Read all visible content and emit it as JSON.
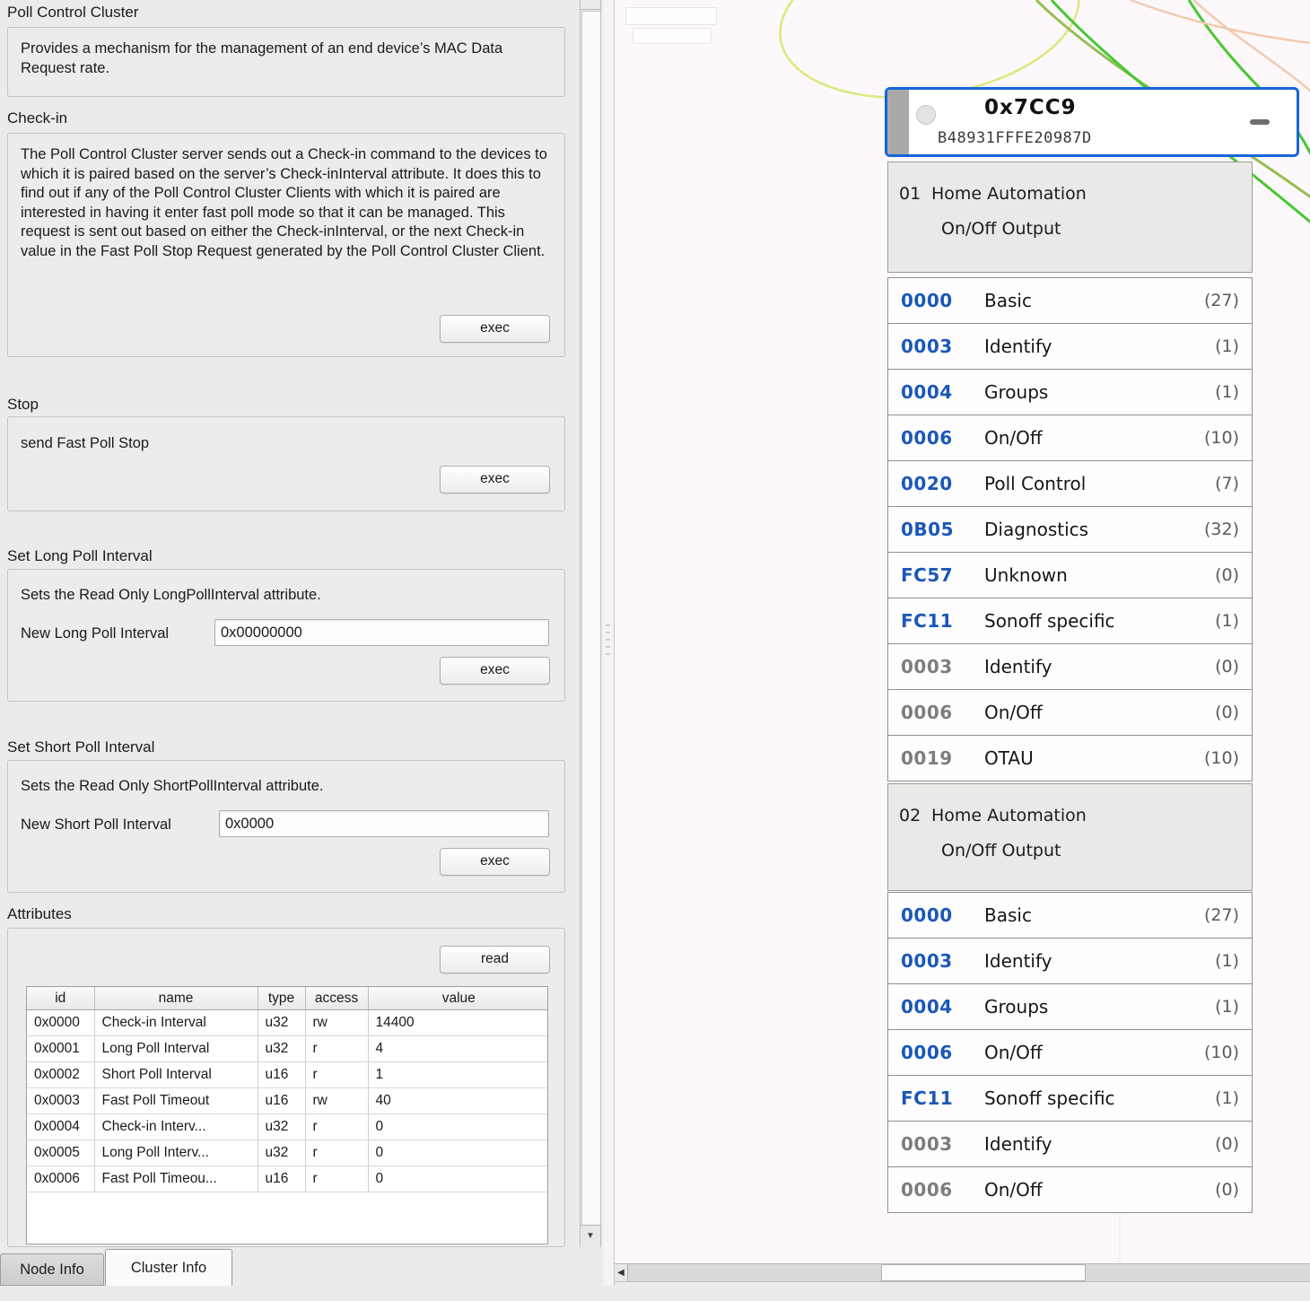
{
  "colors": {
    "accent_blue": "#1565d8",
    "code_blue": "#1b57b8",
    "code_gray": "#7d7d7d",
    "left_bg": "#ebebeb",
    "right_bg": "#fdf8fb",
    "link_green": "#47c832",
    "link_olive": "#97bd52",
    "link_yellow": "#dce87c",
    "link_salmon": "#f1cbb0"
  },
  "icons": {
    "scroll_down": "▼",
    "scroll_left": "◀"
  },
  "left_panel": {
    "title": "Poll Control Cluster",
    "description": "Provides a mechanism for the management of an end device’s MAC Data Request rate.",
    "sections": {
      "checkin": {
        "label": "Check-in",
        "text": "The Poll Control Cluster server sends out a Check-in command to the devices to which it is paired based on the server’s Check-inInterval attribute. It does this to find out if any of the Poll Control Cluster Clients with which it is paired are interested in having it enter fast poll mode so that it can be managed. This request is sent out based on either the Check-inInterval, or the next Check-in value in the Fast Poll Stop Request generated by the Poll Control Cluster Client.",
        "exec_label": "exec"
      },
      "stop": {
        "label": "Stop",
        "text": "send Fast Poll Stop",
        "exec_label": "exec"
      },
      "long_poll": {
        "label": "Set Long Poll Interval",
        "text": "Sets the Read Only LongPollInterval attribute.",
        "field_label": "New Long Poll Interval",
        "field_value": "0x00000000",
        "exec_label": "exec"
      },
      "short_poll": {
        "label": "Set Short Poll Interval",
        "text": "Sets the Read Only ShortPollInterval attribute.",
        "field_label": "New Short Poll Interval",
        "field_value": "0x0000",
        "exec_label": "exec"
      },
      "attributes": {
        "label": "Attributes",
        "read_label": "read",
        "table": {
          "headers": [
            "id",
            "name",
            "type",
            "access",
            "value"
          ],
          "rows": [
            [
              "0x0000",
              "Check-in Interval",
              "u32",
              "rw",
              "14400"
            ],
            [
              "0x0001",
              "Long Poll Interval",
              "u32",
              "r",
              "4"
            ],
            [
              "0x0002",
              "Short Poll Interval",
              "u16",
              "r",
              "1"
            ],
            [
              "0x0003",
              "Fast Poll Timeout",
              "u16",
              "rw",
              "40"
            ],
            [
              "0x0004",
              "Check-in Interv...",
              "u32",
              "r",
              "0"
            ],
            [
              "0x0005",
              "Long Poll Interv...",
              "u32",
              "r",
              "0"
            ],
            [
              "0x0006",
              "Fast Poll Timeou...",
              "u16",
              "r",
              "0"
            ]
          ]
        }
      }
    },
    "tabs": [
      {
        "label": "Node Info",
        "active": false
      },
      {
        "label": "Cluster Info",
        "active": true
      }
    ]
  },
  "node_view": {
    "node": {
      "address": "0x7CC9",
      "mac": "B48931FFFE20987D"
    },
    "endpoints": [
      {
        "id": "01",
        "profile": "Home Automation",
        "device": "On/Off Output",
        "clusters": [
          {
            "code": "0000",
            "name": "Basic",
            "count": "(27)",
            "side": "server"
          },
          {
            "code": "0003",
            "name": "Identify",
            "count": "(1)",
            "side": "server"
          },
          {
            "code": "0004",
            "name": "Groups",
            "count": "(1)",
            "side": "server"
          },
          {
            "code": "0006",
            "name": "On/Off",
            "count": "(10)",
            "side": "server"
          },
          {
            "code": "0020",
            "name": "Poll Control",
            "count": "(7)",
            "side": "server"
          },
          {
            "code": "0B05",
            "name": "Diagnostics",
            "count": "(32)",
            "side": "server"
          },
          {
            "code": "FC57",
            "name": "Unknown",
            "count": "(0)",
            "side": "server"
          },
          {
            "code": "FC11",
            "name": "Sonoff specific",
            "count": "(1)",
            "side": "server"
          },
          {
            "code": "0003",
            "name": "Identify",
            "count": "(0)",
            "side": "client"
          },
          {
            "code": "0006",
            "name": "On/Off",
            "count": "(0)",
            "side": "client"
          },
          {
            "code": "0019",
            "name": "OTAU",
            "count": "(10)",
            "side": "client"
          }
        ]
      },
      {
        "id": "02",
        "profile": "Home Automation",
        "device": "On/Off Output",
        "clusters": [
          {
            "code": "0000",
            "name": "Basic",
            "count": "(27)",
            "side": "server"
          },
          {
            "code": "0003",
            "name": "Identify",
            "count": "(1)",
            "side": "server"
          },
          {
            "code": "0004",
            "name": "Groups",
            "count": "(1)",
            "side": "server"
          },
          {
            "code": "0006",
            "name": "On/Off",
            "count": "(10)",
            "side": "server"
          },
          {
            "code": "FC11",
            "name": "Sonoff specific",
            "count": "(1)",
            "side": "server"
          },
          {
            "code": "0003",
            "name": "Identify",
            "count": "(0)",
            "side": "client"
          },
          {
            "code": "0006",
            "name": "On/Off",
            "count": "(0)",
            "side": "client"
          }
        ]
      }
    ]
  }
}
